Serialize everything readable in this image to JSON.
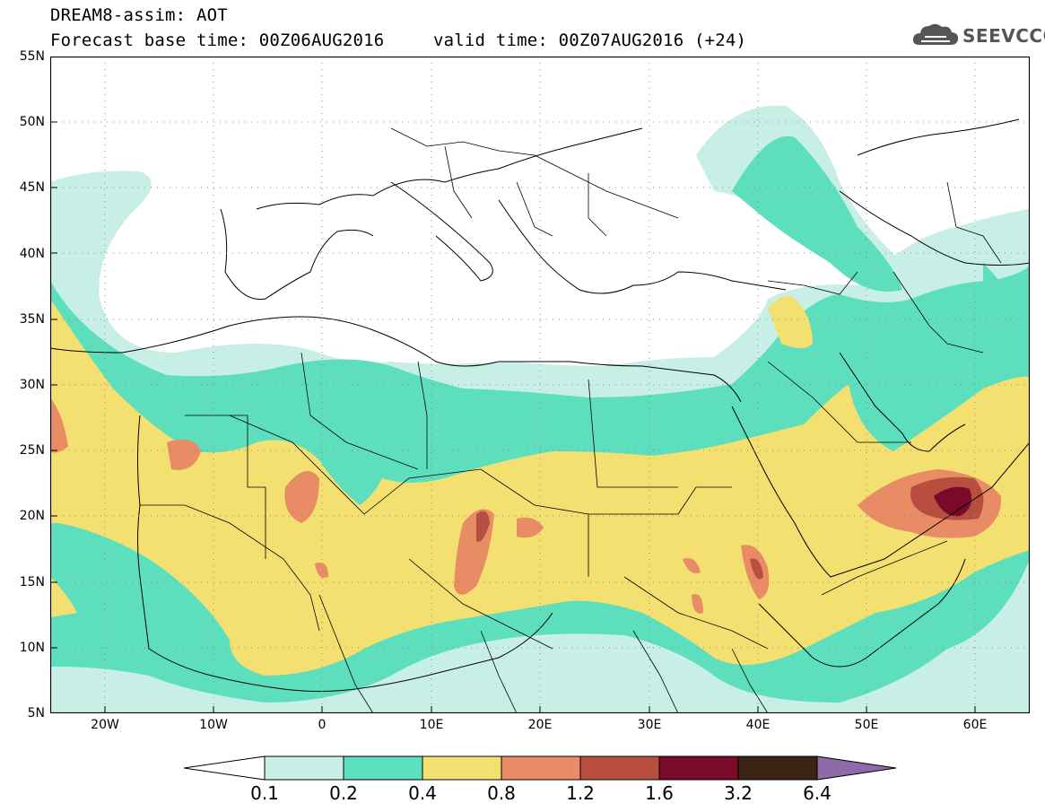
{
  "header": {
    "line1": "DREAM8-assim: AOT",
    "line2": "Forecast base time: 00Z06AUG2016",
    "line3": "valid time: 00Z07AUG2016 (+24)"
  },
  "logo": {
    "text": "SEEVCCC",
    "icon": "cloud-icon"
  },
  "axes": {
    "lat_labels": [
      "55N",
      "50N",
      "45N",
      "40N",
      "35N",
      "30N",
      "25N",
      "20N",
      "15N",
      "10N",
      "5N"
    ],
    "lon_labels": [
      "20W",
      "10W",
      "0",
      "10E",
      "20E",
      "30E",
      "40E",
      "50E",
      "60E"
    ]
  },
  "colorbar": {
    "labels": [
      "0.1",
      "0.2",
      "0.4",
      "0.8",
      "1.2",
      "1.6",
      "3.2",
      "6.4"
    ],
    "colors": [
      "#ffffff",
      "#c8efe6",
      "#5ddfbe",
      "#f4e070",
      "#e88c66",
      "#b84e3f",
      "#7a0a2a",
      "#3b2414",
      "#8e6aa8"
    ]
  },
  "field_colors": {
    "c01": "#c8efe6",
    "c02": "#5ddfbe",
    "c04": "#f4e070",
    "c08": "#e88c66",
    "c12": "#b84e3f",
    "c16": "#7a0a2a"
  }
}
